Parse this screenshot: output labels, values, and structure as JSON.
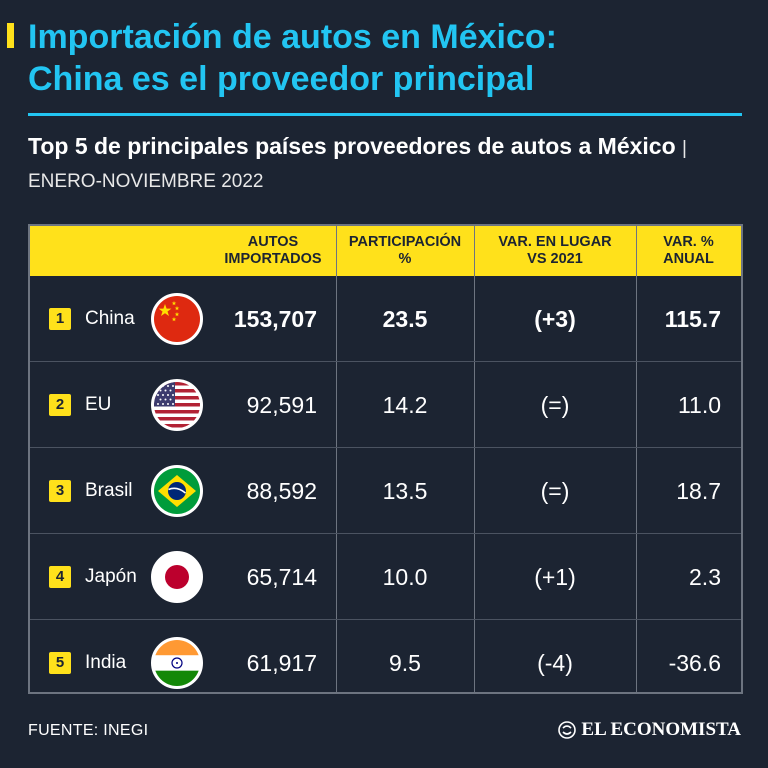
{
  "title": {
    "line1": "Importación de autos en México:",
    "line2": "China es el proveedor principal"
  },
  "subtitle": {
    "text": "Top 5 de principales países proveedores de autos a México",
    "period": "| ENERO-NOVIEMBRE 2022"
  },
  "colors": {
    "background": "#1c2432",
    "accent_yellow": "#ffe11b",
    "title_blue": "#22c5f2"
  },
  "chart_data": {
    "type": "table",
    "title": "Top 5 de principales países proveedores de autos a México",
    "period": "ENERO-NOVIEMBRE 2022",
    "columns": [
      "AUTOS IMPORTADOS",
      "PARTICIPACIÓN %",
      "VAR. EN LUGAR VS 2021",
      "VAR. % ANUAL"
    ],
    "header_lines": {
      "autos": [
        "AUTOS",
        "IMPORTADOS"
      ],
      "participacion": [
        "PARTICIPACIÓN",
        "%"
      ],
      "var_lugar": [
        "VAR. EN LUGAR",
        "VS 2021"
      ],
      "var_anual": [
        "VAR. %",
        "ANUAL"
      ]
    },
    "rows": [
      {
        "rank": "1",
        "country": "China",
        "flag_icon": "china-flag-icon",
        "autos": "153,707",
        "participacion": "23.5",
        "var_lugar": "(+3)",
        "var_anual": "115.7"
      },
      {
        "rank": "2",
        "country": "EU",
        "flag_icon": "usa-flag-icon",
        "autos": "92,591",
        "participacion": "14.2",
        "var_lugar": "(=)",
        "var_anual": "11.0"
      },
      {
        "rank": "3",
        "country": "Brasil",
        "flag_icon": "brazil-flag-icon",
        "autos": "88,592",
        "participacion": "13.5",
        "var_lugar": "(=)",
        "var_anual": "18.7"
      },
      {
        "rank": "4",
        "country": "Japón",
        "flag_icon": "japan-flag-icon",
        "autos": "65,714",
        "participacion": "10.0",
        "var_lugar": "(+1)",
        "var_anual": "2.3"
      },
      {
        "rank": "5",
        "country": "India",
        "flag_icon": "india-flag-icon",
        "autos": "61,917",
        "participacion": "9.5",
        "var_lugar": "(-4)",
        "var_anual": "-36.6"
      }
    ]
  },
  "footer": {
    "source": "FUENTE: INEGI",
    "brand": "EL ECONOMISTA",
    "brand_icon": "el-economista-logo-icon"
  }
}
